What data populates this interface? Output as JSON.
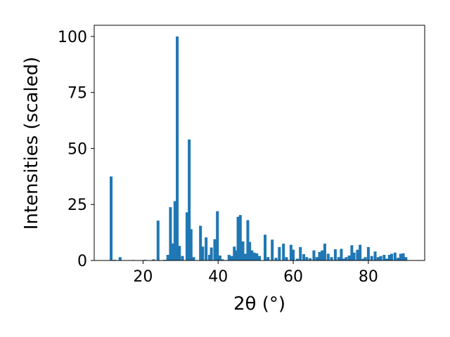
{
  "chart_data": {
    "type": "bar",
    "title": "",
    "xlabel": "2θ (°)",
    "ylabel": "Intensities (scaled)",
    "xlim": [
      7,
      95
    ],
    "ylim": [
      0,
      105
    ],
    "xticks": [
      20,
      40,
      60,
      80
    ],
    "yticks": [
      0,
      25,
      50,
      75,
      100
    ],
    "grid": false,
    "legend": "none",
    "bar_color": "#1f77b4",
    "bar_width": 0.75,
    "x": [
      11.5,
      12.4,
      13.9,
      17.3,
      20.5,
      22.8,
      24.0,
      25.8,
      26.6,
      27.3,
      28.0,
      28.5,
      29.1,
      29.7,
      30.5,
      31.7,
      32.3,
      32.8,
      33.5,
      35.3,
      35.9,
      36.8,
      37.7,
      38.2,
      39.1,
      39.8,
      40.5,
      41.2,
      42.9,
      43.6,
      44.3,
      44.9,
      45.3,
      45.9,
      46.6,
      47.2,
      47.9,
      48.4,
      49.0,
      49.6,
      50.3,
      51.0,
      52.5,
      53.3,
      54.4,
      55.4,
      56.3,
      57.4,
      58.2,
      59.4,
      60.0,
      61.1,
      61.9,
      62.8,
      63.6,
      64.5,
      65.5,
      66.3,
      67.0,
      67.7,
      68.4,
      69.3,
      70.2,
      71.2,
      72.1,
      72.8,
      73.4,
      74.1,
      74.9,
      75.6,
      76.2,
      77.1,
      77.8,
      78.6,
      79.2,
      80.0,
      80.9,
      81.8,
      82.6,
      83.3,
      84.2,
      84.9,
      85.6,
      86.2,
      87.1,
      87.9,
      88.6,
      89.3,
      90.0
    ],
    "values": [
      37.5,
      0.3,
      1.5,
      0.2,
      0.3,
      0.5,
      17.8,
      0.3,
      2.5,
      23.8,
      7.6,
      26.5,
      100.0,
      6.5,
      2.0,
      21.5,
      54.0,
      14.0,
      1.5,
      15.5,
      6.2,
      10.3,
      2.5,
      5.8,
      9.5,
      22.0,
      2.2,
      0.5,
      2.5,
      2.0,
      6.2,
      4.5,
      19.5,
      20.3,
      8.5,
      3.0,
      18.0,
      8.3,
      4.5,
      3.5,
      3.2,
      2.0,
      11.5,
      1.5,
      9.3,
      1.2,
      6.0,
      7.5,
      1.5,
      7.0,
      4.8,
      0.8,
      6.0,
      2.8,
      1.5,
      1.0,
      4.5,
      1.5,
      3.8,
      4.5,
      7.5,
      3.0,
      1.5,
      5.0,
      1.5,
      5.2,
      0.8,
      1.5,
      2.2,
      6.8,
      3.5,
      4.8,
      7.0,
      0.8,
      1.5,
      6.0,
      2.0,
      4.0,
      1.5,
      2.0,
      2.5,
      0.8,
      2.5,
      3.0,
      3.5,
      1.2,
      3.0,
      3.2,
      1.5
    ]
  }
}
